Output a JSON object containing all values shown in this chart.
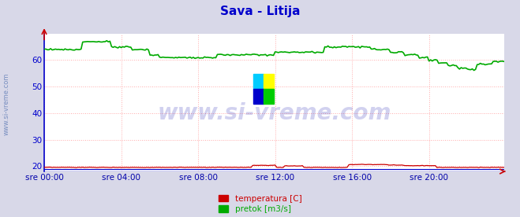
{
  "title": "Sava - Litija",
  "title_color": "#0000cc",
  "title_fontsize": 11,
  "bg_color": "#d8d8e8",
  "plot_bg_color": "#ffffff",
  "grid_color": "#ffaaaa",
  "axis_color": "#0000cc",
  "watermark_text": "www.si-vreme.com",
  "watermark_color": "#0000aa",
  "watermark_alpha": 0.18,
  "watermark_fontsize": 20,
  "ylim": [
    18,
    70
  ],
  "yticks": [
    20,
    30,
    40,
    50,
    60
  ],
  "xlabel_color": "#0000aa",
  "n_points": 288,
  "x_tick_labels": [
    "sre 00:00",
    "sre 04:00",
    "sre 08:00",
    "sre 12:00",
    "sre 16:00",
    "sre 20:00"
  ],
  "x_tick_positions": [
    0,
    48,
    96,
    144,
    192,
    240
  ],
  "temperatura_color": "#cc0000",
  "pretok_color": "#00aa00",
  "visina_color": "#0000cc",
  "legend_labels": [
    "temperatura [C]",
    "pretok [m3/s]"
  ],
  "legend_colors": [
    "#cc0000",
    "#00aa00"
  ],
  "side_text": "www.si-vreme.com",
  "side_text_color": "#4466aa",
  "arrow_color": "#cc0000"
}
